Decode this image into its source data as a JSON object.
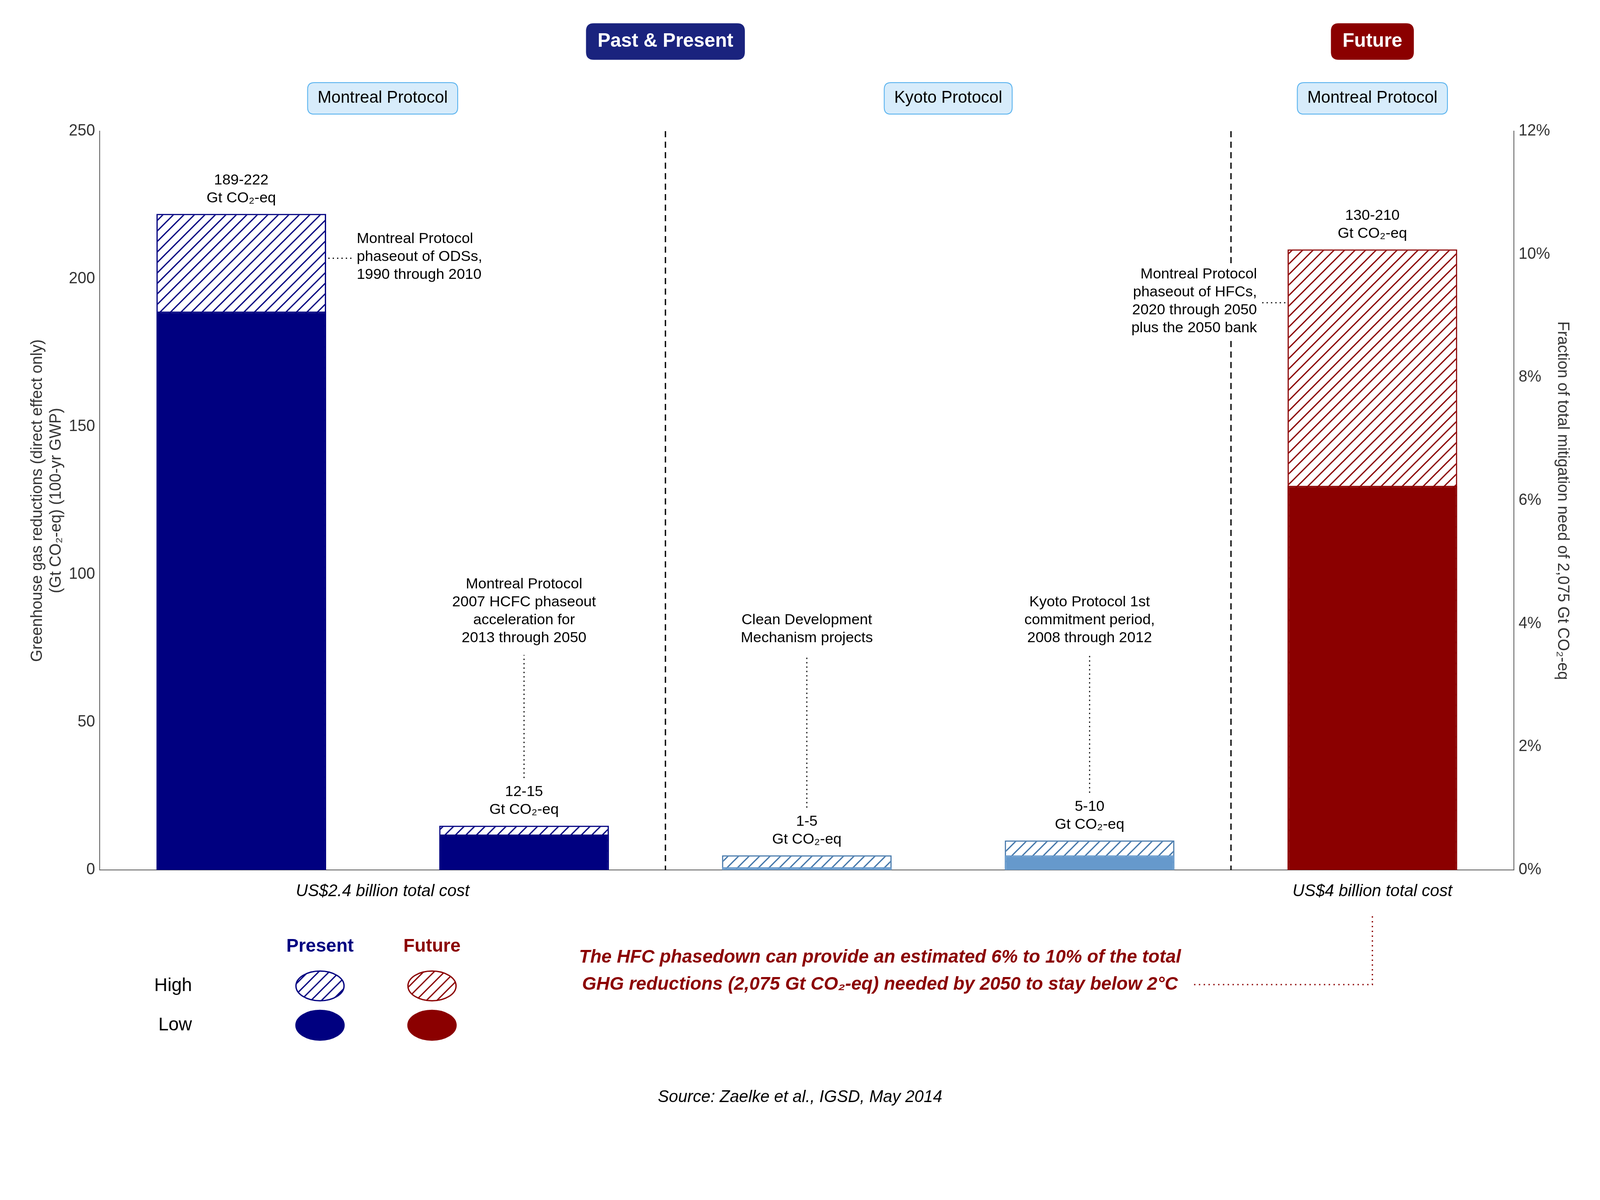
{
  "chart_data": {
    "type": "bar",
    "title": [
      {
        "text": "Past & Present",
        "color": "#1a237e",
        "sections": 2
      },
      {
        "text": "Future",
        "color": "#8b0000",
        "sections": 1
      }
    ],
    "sections": [
      {
        "subtitle": "Montreal Protocol",
        "bars": 2,
        "note": "US$2.4 billion total cost"
      },
      {
        "subtitle": "Kyoto Protocol",
        "bars": 2
      },
      {
        "subtitle": "Montreal Protocol",
        "bars": 1,
        "note": "US$4 billion total cost"
      }
    ],
    "ylabel": [
      "Greenhouse gas reductions (direct effect only)",
      "(Gt CO₂-eq) (100-yr GWP)"
    ],
    "y2label": "Fraction of total mitigation need of 2,075 Gt CO₂-eq",
    "categories": [
      null,
      null,
      null,
      null,
      null
    ],
    "series": [
      {
        "name": "High",
        "colors": [
          "#000080",
          "#000080",
          "#4477aa",
          "#4477aa",
          "#8b0000"
        ],
        "values": [
          222,
          15,
          5,
          10,
          210
        ]
      },
      {
        "name": "Low",
        "colors": [
          "#000080",
          "#000080",
          "#6699cc",
          "#6699cc",
          "#8b0000"
        ],
        "values": [
          189,
          12,
          1,
          5,
          130
        ]
      }
    ],
    "bar_labels": [
      "189-222\nGt CO₂-eq",
      "12-15\nGt CO₂-eq",
      "1-5\nGt CO₂-eq",
      "5-10\nGt CO₂-eq",
      "130-210\nGt CO₂-eq"
    ],
    "annotations": [
      "Montreal Protocol\nphaseout of ODSs,\n1990 through 2010",
      "Montreal Protocol\n2007 HCFC phaseout\nacceleration for\n2013 through 2050",
      "Clean Development\nMechanism projects",
      "Kyoto Protocol 1st\ncommitment period,\n2008 through 2012",
      "Montreal Protocol\nphaseout of HFCs,\n2020 through 2050\nplus the 2050 bank"
    ],
    "ylim": [
      0,
      250
    ],
    "yticks": [
      0,
      50,
      100,
      150,
      200,
      250
    ],
    "y2lim": [
      0,
      12
    ],
    "y2ticks": [
      {
        "value": 0,
        "label": "0%"
      },
      {
        "value": 2,
        "label": "2%"
      },
      {
        "value": 4,
        "label": "4%"
      },
      {
        "value": 6,
        "label": "6%"
      },
      {
        "value": 8,
        "label": "8%"
      },
      {
        "value": 10,
        "label": "10%"
      },
      {
        "value": 12,
        "label": "12%"
      }
    ],
    "grid": false,
    "legend": "bottom",
    "legend_groups": [
      {
        "name": "Present",
        "color": "#000080"
      },
      {
        "name": "Future",
        "color": "#8b0000"
      }
    ],
    "note": {
      "text": [
        "The HFC phasedown can provide an estimated 6% to 10% of the total",
        "GHG reductions (2,075 Gt CO₂-eq) needed by 2050 to stay below 2°C"
      ],
      "color": "#8b0000"
    },
    "source": "Source: Zaelke et al., IGSD, May 2014"
  }
}
